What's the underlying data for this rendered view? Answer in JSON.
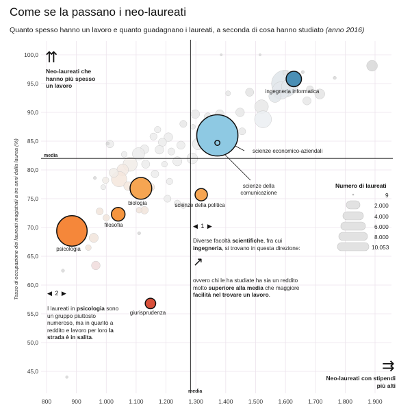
{
  "header": {
    "title": "Come se la passano i neo-laureati",
    "subtitle_main": "Quanto spesso hanno un lavoro e quanto guadagnano i laureati, a seconda di cosa hanno studiato",
    "subtitle_year": "(anno 2016)"
  },
  "chart_data": {
    "type": "scatter",
    "ylabel": "Tasso di occupazione dei laureati magistrali a tre anni dalla laurea (%)",
    "xlim": [
      780,
      1920
    ],
    "ylim": [
      42,
      102
    ],
    "x_ticks": [
      800,
      900,
      1000,
      1100,
      1200,
      1300,
      1400,
      1500,
      1600,
      1700,
      1800,
      1900
    ],
    "x_tick_labels": [
      "800",
      "900",
      "1.000",
      "1.100",
      "1.200",
      "1.300",
      "1.400",
      "1.500",
      "1.600",
      "1.700",
      "1.800",
      "1.900"
    ],
    "y_ticks": [
      45,
      50,
      55,
      60,
      65,
      70,
      75,
      80,
      85,
      90,
      95,
      100
    ],
    "y_tick_labels": [
      "45,0",
      "50,0",
      "55,0",
      "60,0",
      "65,0",
      "70,0",
      "75,0",
      "80,0",
      "85,0",
      "90,0",
      "95,0",
      "100,0"
    ],
    "median_x": 1282,
    "median_y": 82,
    "median_x_label": "media",
    "median_y_label": "media",
    "highlighted": [
      {
        "name": "ingegneria informatica",
        "x": 1628,
        "y": 95.8,
        "graduates": 1400,
        "color": "#4a8fb5",
        "side": "right"
      },
      {
        "name": "scienze economico-aziendali",
        "x": 1372,
        "y": 86.0,
        "graduates": 10053,
        "color": "#8ec9e3",
        "side": "right"
      },
      {
        "name": "scienze della comunicazione",
        "x": 1372,
        "y": 84.7,
        "graduates": 150,
        "color": "#8ec9e3",
        "side": "right"
      },
      {
        "name": "scienze della politica",
        "x": 1318,
        "y": 75.7,
        "graduates": 900,
        "color": "#f6a552",
        "side": "right"
      },
      {
        "name": "biologia",
        "x": 1116,
        "y": 76.8,
        "graduates": 2800,
        "color": "#f6a552",
        "side": "right"
      },
      {
        "name": "filosofia",
        "x": 1040,
        "y": 72.3,
        "graduates": 1100,
        "color": "#f5953f",
        "side": "right"
      },
      {
        "name": "psicologia",
        "x": 885,
        "y": 69.4,
        "graduates": 5500,
        "color": "#f5873a",
        "side": "right"
      },
      {
        "name": "giurisprudenza",
        "x": 1148,
        "y": 56.8,
        "graduates": 650,
        "color": "#d9503a",
        "side": "right"
      }
    ],
    "others": [
      {
        "x": 1890,
        "y": 98.1,
        "graduates": 700,
        "color": "#d8d8d8"
      },
      {
        "x": 1598,
        "y": 95.0,
        "graduates": 4200,
        "color": "#dfe5ea"
      },
      {
        "x": 1585,
        "y": 93.8,
        "graduates": 1800,
        "color": "#e4e8ec"
      },
      {
        "x": 1610,
        "y": 94.5,
        "graduates": 1200,
        "color": "#e2e6ea"
      },
      {
        "x": 1565,
        "y": 92.8,
        "graduates": 900,
        "color": "#e2e6ea"
      },
      {
        "x": 1682,
        "y": 94.0,
        "graduates": 300,
        "color": "#e4e4e4"
      },
      {
        "x": 1715,
        "y": 93.2,
        "graduates": 600,
        "color": "#e4e4e4"
      },
      {
        "x": 1672,
        "y": 92.0,
        "graduates": 400,
        "color": "#e8e8e8"
      },
      {
        "x": 1600,
        "y": 96.9,
        "graduates": 150,
        "color": "#e4e4e4"
      },
      {
        "x": 1520,
        "y": 91.0,
        "graduates": 1100,
        "color": "#e8e8e8"
      },
      {
        "x": 1480,
        "y": 93.5,
        "graduates": 400,
        "color": "#e4e4e4"
      },
      {
        "x": 1525,
        "y": 88.8,
        "graduates": 1700,
        "color": "#ebeff2"
      },
      {
        "x": 1448,
        "y": 90.0,
        "graduates": 450,
        "color": "#e8e8e8"
      },
      {
        "x": 1408,
        "y": 93.3,
        "graduates": 150,
        "color": "#e8e8e8"
      },
      {
        "x": 1455,
        "y": 86.7,
        "graduates": 300,
        "color": "#e8e8e8"
      },
      {
        "x": 1380,
        "y": 89.7,
        "graduates": 450,
        "color": "#e8e8e8"
      },
      {
        "x": 1340,
        "y": 89.3,
        "graduates": 300,
        "color": "#e8e8e8"
      },
      {
        "x": 1298,
        "y": 89.7,
        "graduates": 450,
        "color": "#e8e8e8"
      },
      {
        "x": 1258,
        "y": 88.0,
        "graduates": 300,
        "color": "#e8e8e8"
      },
      {
        "x": 1290,
        "y": 87.5,
        "graduates": 150,
        "color": "#e8e8e8"
      },
      {
        "x": 1308,
        "y": 84.5,
        "graduates": 800,
        "color": "#ececec"
      },
      {
        "x": 1250,
        "y": 84.3,
        "graduates": 400,
        "color": "#ececec"
      },
      {
        "x": 1288,
        "y": 82.0,
        "graduates": 700,
        "color": "#ececec"
      },
      {
        "x": 1238,
        "y": 81.5,
        "graduates": 500,
        "color": "#ececec"
      },
      {
        "x": 1218,
        "y": 83.2,
        "graduates": 300,
        "color": "#ececec"
      },
      {
        "x": 1208,
        "y": 85.7,
        "graduates": 450,
        "color": "#ececec"
      },
      {
        "x": 1188,
        "y": 84.8,
        "graduates": 400,
        "color": "#ececec"
      },
      {
        "x": 1178,
        "y": 83.5,
        "graduates": 450,
        "color": "#ececec"
      },
      {
        "x": 1158,
        "y": 85.8,
        "graduates": 300,
        "color": "#ececec"
      },
      {
        "x": 1172,
        "y": 87.0,
        "graduates": 250,
        "color": "#ececec"
      },
      {
        "x": 1128,
        "y": 83.6,
        "graduates": 450,
        "color": "#ececec"
      },
      {
        "x": 1108,
        "y": 82.8,
        "graduates": 900,
        "color": "#ececec"
      },
      {
        "x": 1132,
        "y": 81.0,
        "graduates": 400,
        "color": "#ececec"
      },
      {
        "x": 1080,
        "y": 81.0,
        "graduates": 1200,
        "color": "#f1ece8"
      },
      {
        "x": 1055,
        "y": 80.0,
        "graduates": 800,
        "color": "#f3e9e2"
      },
      {
        "x": 1043,
        "y": 78.4,
        "graduates": 1400,
        "color": "#f4e6dc"
      },
      {
        "x": 1025,
        "y": 79.5,
        "graduates": 500,
        "color": "#f1ece8"
      },
      {
        "x": 998,
        "y": 78.2,
        "graduates": 250,
        "color": "#f1ece8"
      },
      {
        "x": 1012,
        "y": 84.5,
        "graduates": 350,
        "color": "#ececec"
      },
      {
        "x": 1060,
        "y": 82.7,
        "graduates": 200,
        "color": "#ececec"
      },
      {
        "x": 1073,
        "y": 77.2,
        "graduates": 450,
        "color": "#f3e6dc"
      },
      {
        "x": 1090,
        "y": 76.0,
        "graduates": 250,
        "color": "#f1e4da"
      },
      {
        "x": 1128,
        "y": 73.0,
        "graduates": 350,
        "color": "#f1e4da"
      },
      {
        "x": 1195,
        "y": 81.0,
        "graduates": 200,
        "color": "#ececec"
      },
      {
        "x": 1212,
        "y": 78.0,
        "graduates": 250,
        "color": "#ececec"
      },
      {
        "x": 1163,
        "y": 79.3,
        "graduates": 350,
        "color": "#ececec"
      },
      {
        "x": 1148,
        "y": 77.0,
        "graduates": 400,
        "color": "#f1e8e0"
      },
      {
        "x": 1205,
        "y": 75.0,
        "graduates": 300,
        "color": "#ececec"
      },
      {
        "x": 1238,
        "y": 74.2,
        "graduates": 250,
        "color": "#ececec"
      },
      {
        "x": 1258,
        "y": 73.8,
        "graduates": 200,
        "color": "#ececec"
      },
      {
        "x": 1110,
        "y": 73.0,
        "graduates": 200,
        "color": "#f1e4da"
      },
      {
        "x": 990,
        "y": 77.0,
        "graduates": 150,
        "color": "#ececec"
      },
      {
        "x": 978,
        "y": 72.8,
        "graduates": 300,
        "color": "#f1e4da"
      },
      {
        "x": 1000,
        "y": 71.7,
        "graduates": 250,
        "color": "#f1e4da"
      },
      {
        "x": 958,
        "y": 68.2,
        "graduates": 500,
        "color": "#f1e4da"
      },
      {
        "x": 940,
        "y": 66.5,
        "graduates": 200,
        "color": "#f1e4da"
      },
      {
        "x": 965,
        "y": 63.4,
        "graduates": 450,
        "color": "#f0dcdc"
      },
      {
        "x": 1110,
        "y": 69.0,
        "graduates": 60,
        "color": "#d8d8d8"
      },
      {
        "x": 1005,
        "y": 84.6,
        "graduates": 60,
        "color": "#d8d8d8"
      },
      {
        "x": 962,
        "y": 78.6,
        "graduates": 60,
        "color": "#d8d8d8"
      },
      {
        "x": 855,
        "y": 62.5,
        "graduates": 60,
        "color": "#d8d8d8"
      },
      {
        "x": 868,
        "y": 44.0,
        "graduates": 40,
        "color": "#d8d8d8"
      },
      {
        "x": 1515,
        "y": 100.0,
        "graduates": 30,
        "color": "#d8d8d8"
      },
      {
        "x": 1385,
        "y": 100.0,
        "graduates": 30,
        "color": "#d8d8d8"
      },
      {
        "x": 1658,
        "y": 97.0,
        "graduates": 60,
        "color": "#d8d8d8"
      },
      {
        "x": 1765,
        "y": 96.0,
        "graduates": 60,
        "color": "#d8d8d8"
      }
    ]
  },
  "annotations": {
    "top_left_lines": [
      "Neo-laureati che",
      "hanno più spesso",
      "un lavoro"
    ],
    "bottom_right": "Neo-laureati con stipendi",
    "bottom_right_2": "più alti",
    "marker_1": "◀ 1 ▶",
    "marker_2": "◀ 2 ▶",
    "note1_a": "Diverse facoltà ",
    "note1_b": "scientifiche",
    "note1_c": ", fra cui",
    "note1_d": "ingegneria",
    "note1_e": ", si trovano in questa direzione:",
    "note1_f": "ovvero chi le ha studiate ha sia un reddito",
    "note1_g": "molto ",
    "note1_h": "superiore alla media",
    "note1_i": " che maggiore",
    "note1_j": "facilità nel trovare un lavoro",
    "note1_k": ".",
    "note2_a": "I laureati in ",
    "note2_b": "psicologia",
    "note2_c": " sono",
    "note2_d": "un gruppo piuttosto",
    "note2_e": "numeroso, ma in quanto a",
    "note2_f": "reddito e lavoro per loro ",
    "note2_g": "la",
    "note2_h": "strada è in salita",
    "note2_i": "."
  },
  "legend": {
    "title": "Numero di laureati",
    "values": [
      "9",
      "2.000",
      "4.000",
      "6.000",
      "8.000",
      "10.053"
    ]
  },
  "colors": {
    "grid": "#ece3ec",
    "axis": "#111111",
    "tick_text": "#333333"
  }
}
